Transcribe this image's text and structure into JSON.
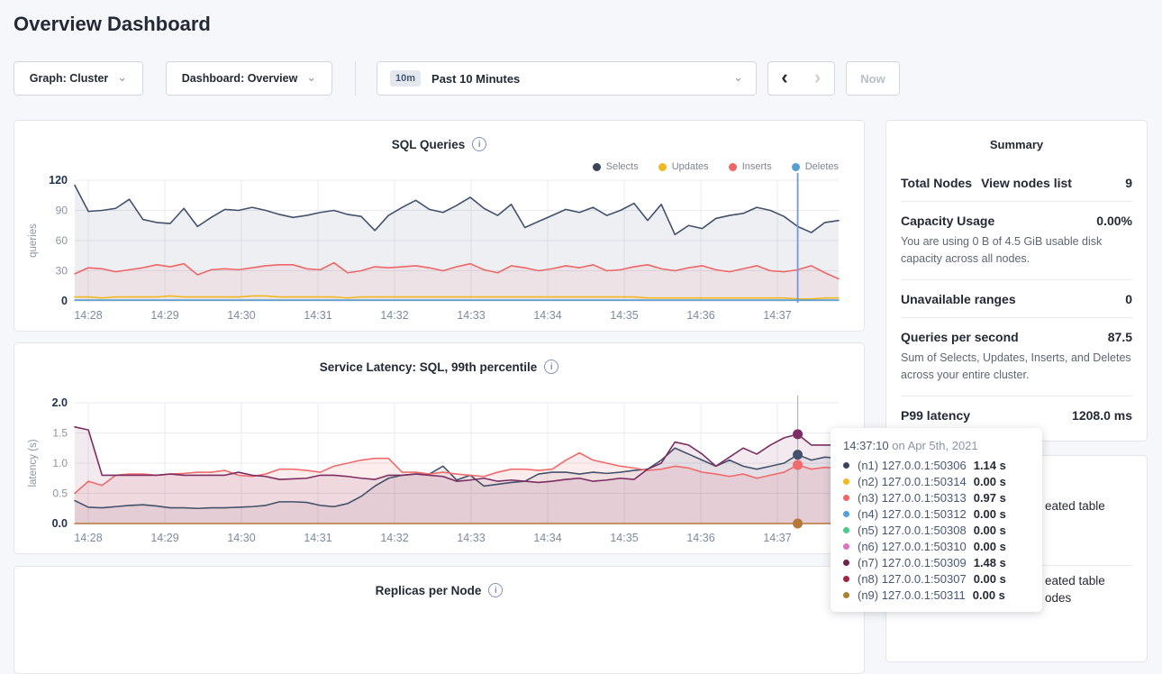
{
  "page": {
    "title": "Overview Dashboard"
  },
  "controls": {
    "graph_dropdown": {
      "label": "Graph: Cluster",
      "chevron": "⌄"
    },
    "dashboard_dropdown": {
      "label": "Dashboard: Overview",
      "chevron": "⌄"
    },
    "time_range": {
      "badge": "10m",
      "label": "Past 10 Minutes",
      "chevron": "⌄"
    },
    "prev_label": "‹",
    "next_label": "›",
    "now_label": "Now"
  },
  "summary": {
    "title": "Summary",
    "value_color": "#3da10c",
    "link_color": "#2962d9",
    "rows": [
      {
        "label": "Total Nodes",
        "link": "View nodes list",
        "value": "9",
        "desc": ""
      },
      {
        "label": "Capacity Usage",
        "link": "",
        "value": "0.00%",
        "desc": "You are using 0 B of 4.5 GiB usable disk capacity across all nodes."
      },
      {
        "label": "Unavailable ranges",
        "link": "",
        "value": "0",
        "desc": ""
      },
      {
        "label": "Queries per second",
        "link": "",
        "value": "87.5",
        "desc": "Sum of Selects, Updates, Inserts, and Deletes across your entire cluster."
      },
      {
        "label": "P99 latency",
        "link": "",
        "value": "1208.0 ms",
        "desc": ""
      }
    ]
  },
  "tooltip": {
    "time": "14:37:10",
    "date_suffix": " on Apr 5th, 2021",
    "rows": [
      {
        "color": "#3b4558",
        "label": "(n1) 127.0.0.1:50306",
        "value": "1.14 s"
      },
      {
        "color": "#f0b823",
        "label": "(n2) 127.0.0.1:50314",
        "value": "0.00 s"
      },
      {
        "color": "#ee6667",
        "label": "(n3) 127.0.0.1:50313",
        "value": "0.97 s"
      },
      {
        "color": "#559fd3",
        "label": "(n4) 127.0.0.1:50312",
        "value": "0.00 s"
      },
      {
        "color": "#4ecb8c",
        "label": "(n5) 127.0.0.1:50308",
        "value": "0.00 s"
      },
      {
        "color": "#d974c1",
        "label": "(n6) 127.0.0.1:50310",
        "value": "0.00 s"
      },
      {
        "color": "#6f2152",
        "label": "(n7) 127.0.0.1:50309",
        "value": "1.48 s"
      },
      {
        "color": "#a12441",
        "label": "(n8) 127.0.0.1:50307",
        "value": "0.00 s"
      },
      {
        "color": "#ab8134",
        "label": "(n9) 127.0.0.1:50311",
        "value": "0.00 s"
      }
    ]
  },
  "events_panel": {
    "visible_fragments": [
      {
        "text": "eated table"
      },
      {
        "text": "eated table"
      },
      {
        "text": "odes"
      }
    ]
  },
  "chart_data": [
    {
      "type": "line",
      "title": "SQL Queries",
      "ylabel": "queries",
      "xlabel": "",
      "x_ticks": [
        "14:28",
        "14:29",
        "14:30",
        "14:31",
        "14:32",
        "14:33",
        "14:34",
        "14:35",
        "14:36",
        "14:37"
      ],
      "y_ticks": [
        "0",
        "30",
        "60",
        "90",
        "120"
      ],
      "ylim": [
        0,
        120
      ],
      "grid": true,
      "legend_position": "top-right",
      "legend": [
        {
          "name": "Selects",
          "color": "#3b4558"
        },
        {
          "name": "Updates",
          "color": "#f0b823"
        },
        {
          "name": "Inserts",
          "color": "#ee6667"
        },
        {
          "name": "Deletes",
          "color": "#559fd3"
        }
      ],
      "hover": {
        "index": 53,
        "line_color": "#6f96e8",
        "dots": false
      },
      "series": [
        {
          "name": "Selects",
          "color": "#44516b",
          "fill_opacity": 0.09,
          "values": [
            115,
            89,
            90,
            92,
            101,
            81,
            78,
            77,
            92,
            74,
            83,
            91,
            90,
            93,
            90,
            86,
            83,
            85,
            88,
            90,
            86,
            84,
            70,
            85,
            93,
            100,
            91,
            88,
            95,
            103,
            92,
            85,
            96,
            73,
            79,
            85,
            91,
            88,
            93,
            85,
            90,
            97,
            80,
            96,
            66,
            75,
            72,
            82,
            85,
            87,
            93,
            90,
            84,
            74,
            68,
            78,
            80
          ]
        },
        {
          "name": "Inserts",
          "color": "#ee6667",
          "fill_opacity": 0.09,
          "values": [
            27,
            33,
            32,
            29,
            31,
            33,
            36,
            34,
            37,
            26,
            31,
            32,
            31,
            33,
            35,
            36,
            36,
            32,
            31,
            38,
            28,
            30,
            34,
            33,
            34,
            35,
            33,
            30,
            34,
            37,
            31,
            28,
            35,
            33,
            30,
            32,
            35,
            33,
            36,
            30,
            31,
            34,
            36,
            32,
            30,
            33,
            35,
            31,
            29,
            32,
            35,
            30,
            29,
            31,
            35,
            28,
            22
          ]
        },
        {
          "name": "Updates",
          "color": "#f0b823",
          "fill_opacity": 0,
          "values": [
            4,
            4,
            3,
            4,
            4,
            4,
            4,
            5,
            4,
            4,
            4,
            4,
            4,
            5,
            5,
            4,
            4,
            4,
            4,
            4,
            3,
            4,
            4,
            4,
            4,
            4,
            4,
            4,
            4,
            4,
            4,
            4,
            4,
            4,
            4,
            4,
            4,
            4,
            4,
            4,
            4,
            4,
            3,
            3,
            3,
            3,
            3,
            3,
            3,
            3,
            3,
            3,
            3,
            2,
            2,
            3,
            3
          ]
        },
        {
          "name": "Deletes",
          "color": "#559fd3",
          "fill_opacity": 0,
          "values": [
            0.8,
            0.8,
            0.8,
            0.8,
            0.8,
            0.8,
            0.8,
            0.8,
            0.8,
            0.8,
            0.8,
            0.8,
            0.8,
            0.8,
            0.8,
            0.8,
            0.8,
            0.8,
            0.8,
            0.8,
            0.8,
            0.8,
            0.8,
            0.8,
            0.8,
            0.8,
            0.8,
            0.8,
            0.8,
            0.8,
            0.8,
            0.8,
            0.8,
            0.8,
            0.8,
            0.8,
            0.8,
            0.8,
            0.8,
            0.8,
            0.8,
            0.8,
            0.8,
            0.8,
            0.8,
            0.8,
            0.8,
            0.8,
            0.8,
            0.8,
            0.8,
            0.8,
            0.8,
            0.8,
            0.8,
            0.8,
            0.8
          ]
        }
      ]
    },
    {
      "type": "line",
      "title": "Service Latency: SQL, 99th percentile",
      "ylabel": "latency (s)",
      "xlabel": "",
      "x_ticks": [
        "14:28",
        "14:29",
        "14:30",
        "14:31",
        "14:32",
        "14:33",
        "14:34",
        "14:35",
        "14:36",
        "14:37"
      ],
      "y_ticks": [
        "0.0",
        "0.5",
        "1.0",
        "1.5",
        "2.0"
      ],
      "ylim": [
        0,
        2
      ],
      "grid": true,
      "legend_position": "none",
      "legend": [],
      "hover": {
        "index": 53,
        "line_color": "#b0b7c3",
        "dots": true
      },
      "series": [
        {
          "name": "(n1) 127.0.0.1:50306",
          "color": "#44516b",
          "fill_opacity": 0.08,
          "dot": true,
          "values": [
            0.38,
            0.27,
            0.26,
            0.28,
            0.3,
            0.31,
            0.29,
            0.26,
            0.26,
            0.25,
            0.26,
            0.26,
            0.27,
            0.28,
            0.3,
            0.36,
            0.36,
            0.35,
            0.3,
            0.28,
            0.33,
            0.45,
            0.62,
            0.75,
            0.8,
            0.82,
            0.82,
            0.95,
            0.72,
            0.8,
            0.62,
            0.65,
            0.68,
            0.7,
            0.82,
            0.85,
            0.85,
            0.82,
            0.85,
            0.83,
            0.85,
            0.88,
            0.9,
            1.05,
            1.25,
            1.15,
            1.05,
            0.95,
            1.05,
            0.95,
            0.9,
            0.95,
            1.0,
            1.14,
            1.05,
            1.1,
            1.08
          ]
        },
        {
          "name": "(n3) 127.0.0.1:50313",
          "color": "#f06b6b",
          "fill_opacity": 0.13,
          "dot": true,
          "values": [
            0.5,
            0.7,
            0.63,
            0.8,
            0.82,
            0.82,
            0.8,
            0.82,
            0.83,
            0.85,
            0.85,
            0.88,
            0.8,
            0.78,
            0.82,
            0.9,
            0.9,
            0.88,
            0.85,
            0.95,
            1.0,
            1.05,
            1.08,
            1.08,
            0.85,
            0.85,
            0.82,
            0.85,
            0.82,
            0.8,
            0.78,
            0.85,
            0.9,
            0.9,
            0.88,
            0.9,
            1.05,
            1.17,
            1.05,
            1.0,
            0.95,
            0.92,
            0.88,
            0.9,
            0.95,
            0.92,
            0.85,
            0.82,
            0.78,
            0.82,
            0.75,
            0.8,
            0.85,
            0.97,
            0.9,
            0.93,
            0.92
          ]
        },
        {
          "name": "(n7) 127.0.0.1:50309",
          "color": "#7c2d62",
          "fill_opacity": 0.1,
          "dot": true,
          "values": [
            1.6,
            1.55,
            0.8,
            0.8,
            0.8,
            0.8,
            0.8,
            0.82,
            0.8,
            0.8,
            0.8,
            0.8,
            0.85,
            0.8,
            0.78,
            0.73,
            0.74,
            0.75,
            0.8,
            0.8,
            0.78,
            0.75,
            0.73,
            0.8,
            0.8,
            0.82,
            0.8,
            0.78,
            0.7,
            0.72,
            0.75,
            0.7,
            0.72,
            0.7,
            0.68,
            0.7,
            0.73,
            0.75,
            0.7,
            0.72,
            0.75,
            0.73,
            0.9,
            1.0,
            1.35,
            1.3,
            1.15,
            0.95,
            1.1,
            1.25,
            1.15,
            1.3,
            1.42,
            1.48,
            1.3,
            1.3,
            1.3
          ]
        },
        {
          "name": "(n9) 127.0.0.1:50311",
          "color": "#b5773a",
          "fill_opacity": 0,
          "dot": true,
          "values": [
            0,
            0,
            0,
            0,
            0,
            0,
            0,
            0,
            0,
            0,
            0,
            0,
            0,
            0,
            0,
            0,
            0,
            0,
            0,
            0,
            0,
            0,
            0,
            0,
            0,
            0,
            0,
            0,
            0,
            0,
            0,
            0,
            0,
            0,
            0,
            0,
            0,
            0,
            0,
            0,
            0,
            0,
            0,
            0,
            0,
            0,
            0,
            0,
            0,
            0,
            0,
            0,
            0,
            0,
            0,
            0,
            0
          ]
        }
      ]
    },
    {
      "type": "line",
      "title": "Replicas per Node",
      "ylabel": "",
      "xlabel": "",
      "x_ticks": [],
      "y_ticks": [],
      "ylim": [
        0,
        1
      ],
      "series": []
    }
  ]
}
